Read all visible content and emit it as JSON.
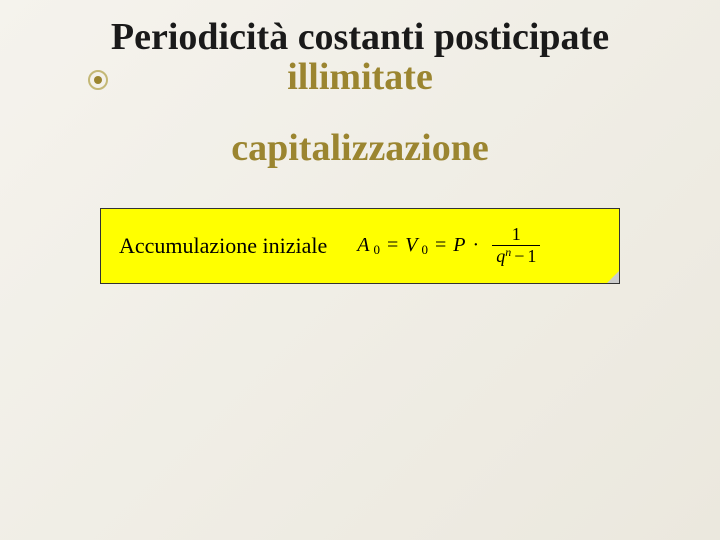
{
  "title": {
    "line1": "Periodicità costanti posticipate",
    "line2": "illimitate",
    "line1_color": "#1a1a1a",
    "line2_color": "#9b8530",
    "fontsize": 38
  },
  "subheading": {
    "text": "capitalizzazione",
    "color": "#9b8530",
    "fontsize": 38
  },
  "decoration": {
    "outer_color": "#c4b876",
    "inner_color": "#9b8530"
  },
  "formula_box": {
    "background": "#ffff00",
    "border": "#333333",
    "label": "Accumulazione iniziale",
    "label_fontsize": 22,
    "math": {
      "A": "A",
      "A_sub": "0",
      "eq1": "=",
      "V": "V",
      "V_sub": "0",
      "eq2": "=",
      "P": "P",
      "dot": "·",
      "frac_num": "1",
      "frac_den_q": "q",
      "frac_den_sup": "n",
      "frac_den_minus": "−",
      "frac_den_one": "1"
    }
  },
  "background": {
    "gradient_start": "#f5f3ed",
    "gradient_end": "#ebe8de"
  }
}
